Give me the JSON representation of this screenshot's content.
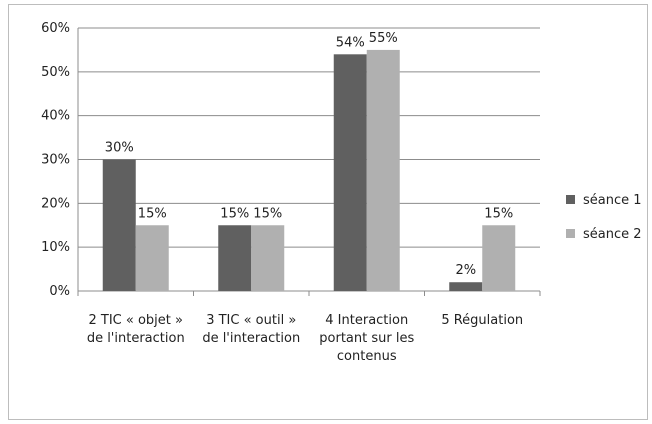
{
  "chart_data": {
    "type": "bar",
    "categories": [
      [
        "2 TIC « objet »",
        "de l'interaction"
      ],
      [
        "3 TIC « outil »",
        "de l'interaction"
      ],
      [
        "4 Interaction",
        "portant sur les",
        "contenus"
      ],
      [
        "5 Régulation"
      ]
    ],
    "series": [
      {
        "name": "séance 1",
        "values": [
          30,
          15,
          54,
          2
        ],
        "labels": [
          "30%",
          "15%",
          "54%",
          "2%"
        ],
        "color": "#606060"
      },
      {
        "name": "séance 2",
        "values": [
          15,
          15,
          55,
          15
        ],
        "labels": [
          "15%",
          "15%",
          "55%",
          "15%"
        ],
        "color": "#b0b0b0"
      }
    ],
    "y_ticks": [
      "0%",
      "10%",
      "20%",
      "30%",
      "40%",
      "50%",
      "60%"
    ],
    "ylim": [
      0,
      60
    ],
    "grid": true,
    "legend_position": "right"
  }
}
